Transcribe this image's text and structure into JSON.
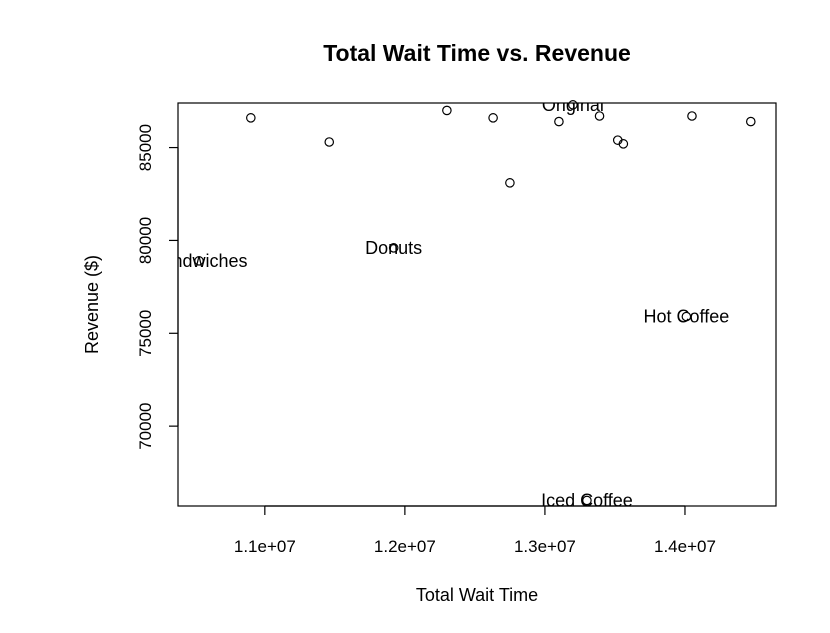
{
  "chart_data": {
    "type": "scatter",
    "title": "Total Wait Time vs. Revenue",
    "xlabel": "Total Wait Time",
    "ylabel": "Revenue ($)",
    "xlim": [
      10380000,
      14650000
    ],
    "ylim": [
      65700000,
      87400000
    ],
    "x_ticks": [
      {
        "value": 11000000,
        "label": "1.1e+07"
      },
      {
        "value": 12000000,
        "label": "1.2e+07"
      },
      {
        "value": 13000000,
        "label": "1.3e+07"
      },
      {
        "value": 14000000,
        "label": "1.4e+07"
      }
    ],
    "y_ticks": [
      {
        "value": 70000,
        "label": "70000"
      },
      {
        "value": 75000,
        "label": "75000"
      },
      {
        "value": 80000,
        "label": "80000"
      },
      {
        "value": 85000,
        "label": "85000"
      }
    ],
    "points": [
      {
        "x": 10530000,
        "y": 78900,
        "label": "Sandwiches"
      },
      {
        "x": 10900000,
        "y": 86600,
        "label": ""
      },
      {
        "x": 11460000,
        "y": 85300,
        "label": ""
      },
      {
        "x": 11920000,
        "y": 79600,
        "label": "Donuts"
      },
      {
        "x": 12300000,
        "y": 87000,
        "label": ""
      },
      {
        "x": 12630000,
        "y": 86600,
        "label": ""
      },
      {
        "x": 12750000,
        "y": 83100,
        "label": ""
      },
      {
        "x": 13100000,
        "y": 86400,
        "label": ""
      },
      {
        "x": 13200000,
        "y": 87300,
        "label": "Original"
      },
      {
        "x": 13300000,
        "y": 66000,
        "label": "Iced Coffee"
      },
      {
        "x": 13390000,
        "y": 86700,
        "label": ""
      },
      {
        "x": 13520000,
        "y": 85400,
        "label": ""
      },
      {
        "x": 13560000,
        "y": 85200,
        "label": ""
      },
      {
        "x": 14010000,
        "y": 75900,
        "label": "Hot Coffee"
      },
      {
        "x": 14050000,
        "y": 86700,
        "label": ""
      },
      {
        "x": 14470000,
        "y": 86400,
        "label": ""
      }
    ],
    "grid": false,
    "legend": "none"
  }
}
